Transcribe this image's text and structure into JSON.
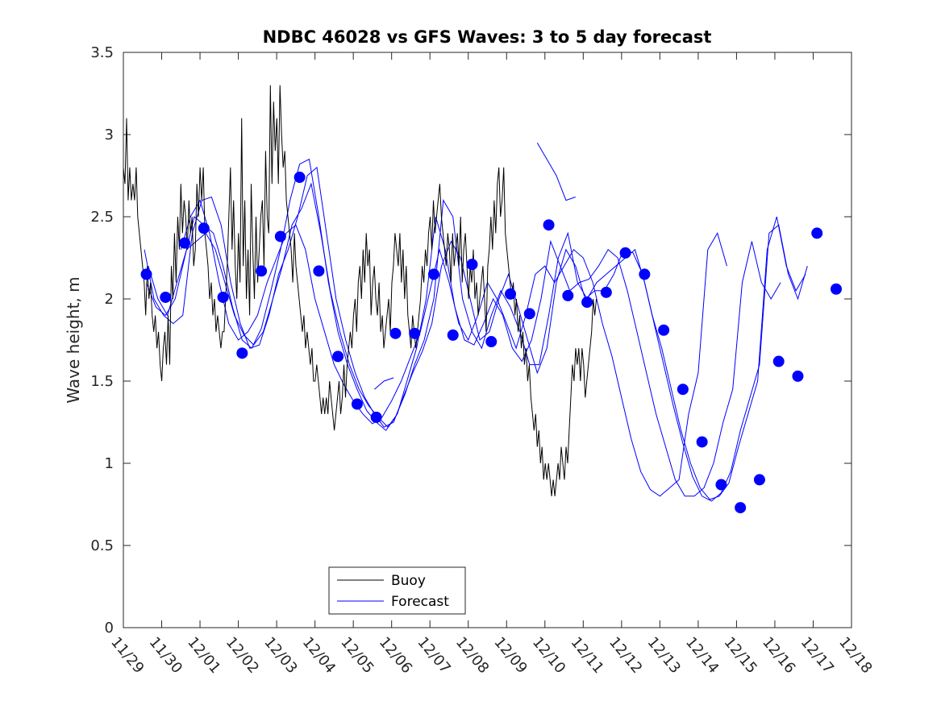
{
  "chart_data": {
    "type": "line",
    "title": "NDBC 46028 vs GFS Waves: 3 to 5 day forecast",
    "xlabel": "",
    "ylabel": "Wave height, m",
    "xlim": [
      0,
      19
    ],
    "ylim": [
      0,
      3.5
    ],
    "yticks": [
      0,
      0.5,
      1,
      1.5,
      2,
      2.5,
      3,
      3.5
    ],
    "ytick_labels": [
      "0",
      "0.5",
      "1",
      "1.5",
      "2",
      "2.5",
      "3",
      "3.5"
    ],
    "xtick_labels": [
      "11/29",
      "11/30",
      "12/01",
      "12/02",
      "12/03",
      "12/04",
      "12/05",
      "12/06",
      "12/07",
      "12/08",
      "12/09",
      "12/10",
      "12/11",
      "12/12",
      "12/13",
      "12/14",
      "12/15",
      "12/16",
      "12/17",
      "12/18"
    ],
    "legend": {
      "location": "bottom-center",
      "entries": [
        "Buoy",
        "Forecast"
      ]
    },
    "colors": {
      "buoy": "#000000",
      "forecast": "#0000ff",
      "markers": "#0000ff"
    },
    "series": [
      {
        "name": "Buoy",
        "x_step": 0.0417,
        "values": [
          2.8,
          2.7,
          3.1,
          2.6,
          2.8,
          2.6,
          2.7,
          2.6,
          2.8,
          2.5,
          2.4,
          2.3,
          2.2,
          2.1,
          1.9,
          2.2,
          2.0,
          2.1,
          1.9,
          1.8,
          1.9,
          1.7,
          1.8,
          1.6,
          1.5,
          1.7,
          1.8,
          1.6,
          1.9,
          1.6,
          2.2,
          2.0,
          2.4,
          2.1,
          2.5,
          2.3,
          2.7,
          2.4,
          2.6,
          2.5,
          2.3,
          2.6,
          2.4,
          2.5,
          2.2,
          2.3,
          2.7,
          2.5,
          2.8,
          2.6,
          2.8,
          2.4,
          2.3,
          2.2,
          2.0,
          2.1,
          1.9,
          2.0,
          1.8,
          1.9,
          1.8,
          1.7,
          1.8,
          1.8,
          2.0,
          2.2,
          2.5,
          2.8,
          2.3,
          2.6,
          2.2,
          2.0,
          2.4,
          2.1,
          3.1,
          2.2,
          2.6,
          2.0,
          2.3,
          1.9,
          2.7,
          2.3,
          2.0,
          2.5,
          2.1,
          2.3,
          2.5,
          2.6,
          2.2,
          2.9,
          2.5,
          2.4,
          3.3,
          2.7,
          3.2,
          2.9,
          3.1,
          2.7,
          3.3,
          3.0,
          2.8,
          2.9,
          2.6,
          2.5,
          2.4,
          2.3,
          2.1,
          2.4,
          2.2,
          2.1,
          2.0,
          1.9,
          1.8,
          1.9,
          1.7,
          1.8,
          1.7,
          1.6,
          1.7,
          1.5,
          1.5,
          1.6,
          1.5,
          1.4,
          1.3,
          1.4,
          1.3,
          1.4,
          1.3,
          1.5,
          1.4,
          1.3,
          1.2,
          1.3,
          1.4,
          1.5,
          1.3,
          1.4,
          1.6,
          1.4,
          1.6,
          1.7,
          1.8,
          1.7,
          1.9,
          2.0,
          1.8,
          2.1,
          2.2,
          2.0,
          2.3,
          2.1,
          2.4,
          2.2,
          2.3,
          1.9,
          2.1,
          2.2,
          2.0,
          1.9,
          2.1,
          1.8,
          1.9,
          1.7,
          1.8,
          1.9,
          2.0,
          1.8,
          2.1,
          2.2,
          2.4,
          2.3,
          2.2,
          2.4,
          2.1,
          2.3,
          2.0,
          2.2,
          1.9,
          1.8,
          1.7,
          1.9,
          1.8,
          1.7,
          1.8,
          1.9,
          2.0,
          2.2,
          2.1,
          2.3,
          2.2,
          2.4,
          2.5,
          2.3,
          2.6,
          2.4,
          2.5,
          2.6,
          2.7,
          2.5,
          2.4,
          2.3,
          2.2,
          2.4,
          2.3,
          2.1,
          2.4,
          2.2,
          2.3,
          2.4,
          2.2,
          2.5,
          2.1,
          2.3,
          2.4,
          2.2,
          2.0,
          2.2,
          2.1,
          2.3,
          2.0,
          2.1,
          1.9,
          2.0,
          2.1,
          2.2,
          2.0,
          1.8,
          2.2,
          2.3,
          2.5,
          2.3,
          2.6,
          2.4,
          2.7,
          2.8,
          2.5,
          2.6,
          2.8,
          2.4,
          2.3,
          2.2,
          2.1,
          2.0,
          2.1,
          1.9,
          2.0,
          1.8,
          1.9,
          1.7,
          1.8,
          1.6,
          1.7,
          1.5,
          1.6,
          1.4,
          1.3,
          1.2,
          1.3,
          1.1,
          1.2,
          1.0,
          1.1,
          0.9,
          1.0,
          0.9,
          1.0,
          0.9,
          0.8,
          0.9,
          0.8,
          0.9,
          1.0,
          0.9,
          1.1,
          1.0,
          0.9,
          1.1,
          1.0,
          1.2,
          1.4,
          1.6,
          1.5,
          1.7,
          1.6,
          1.7,
          1.5,
          1.7,
          1.6,
          1.4,
          1.5,
          1.6,
          1.7,
          1.8,
          2.0,
          1.9,
          2.0
        ]
      },
      {
        "name": "Forecast 1",
        "x_start": 0.55,
        "x_step": 0.25,
        "values": [
          2.3,
          2.0,
          1.9,
          1.85,
          1.9,
          2.4,
          2.6,
          2.62,
          2.45,
          2.1,
          1.85,
          1.7,
          1.72,
          1.9,
          2.15,
          2.3,
          2.5,
          2.75,
          2.8,
          2.4,
          2.0,
          1.75,
          1.55,
          1.4,
          1.3,
          1.22,
          1.25,
          1.4,
          1.55,
          1.68,
          1.85,
          2.2,
          2.35,
          2.25,
          2.0,
          1.75,
          1.8,
          2.0,
          2.15,
          1.95,
          1.75,
          1.55,
          1.7,
          2.1,
          2.3,
          2.2,
          2.0,
          2.05,
          2.05,
          2.15,
          2.3,
          2.28,
          2.15,
          1.9,
          1.7,
          1.45,
          1.2,
          1.0,
          0.85,
          0.78,
          0.8,
          0.88,
          1.1,
          1.3,
          1.5,
          2.3,
          2.5,
          2.2,
          2.05,
          2.15
        ]
      },
      {
        "name": "Forecast 2",
        "x_start": 0.6,
        "x_step": 0.25,
        "values": [
          2.1,
          1.95,
          1.9,
          2.0,
          2.25,
          2.5,
          2.45,
          2.4,
          2.2,
          1.95,
          1.75,
          1.7,
          1.82,
          2.05,
          2.3,
          2.6,
          2.82,
          2.85,
          2.5,
          2.1,
          1.8,
          1.6,
          1.45,
          1.32,
          1.25,
          1.2,
          1.28,
          1.42,
          1.6,
          1.75,
          2.0,
          2.6,
          2.5,
          2.0,
          1.8,
          1.7,
          1.9,
          2.05,
          1.95,
          1.8,
          1.6,
          1.6,
          1.9,
          2.25,
          2.4,
          2.1,
          2.0,
          2.1,
          2.15,
          2.2,
          2.25,
          2.3,
          2.1,
          1.85,
          1.6,
          1.35,
          1.12,
          0.92,
          0.8,
          0.77,
          0.82,
          0.95,
          1.2,
          1.4,
          1.6,
          2.4,
          2.45,
          2.15,
          2.0,
          2.2
        ]
      },
      {
        "name": "Forecast 3",
        "x_start": 0.65,
        "x_step": 0.25,
        "values": [
          2.2,
          2.0,
          1.9,
          2.1,
          2.3,
          2.35,
          2.4,
          2.3,
          2.1,
          1.9,
          1.78,
          1.72,
          1.8,
          2.0,
          2.2,
          2.45,
          2.55,
          2.7,
          2.4,
          2.05,
          1.8,
          1.6,
          1.45,
          1.35,
          1.28,
          1.22,
          1.3,
          1.5,
          1.7,
          2.0,
          2.5,
          2.3,
          1.95,
          1.75,
          1.72,
          1.85,
          2.0,
          1.9,
          1.7,
          1.62,
          1.75,
          2.0,
          2.35,
          2.2,
          2.05,
          2.1,
          2.12,
          2.2,
          2.3,
          2.25,
          2.05,
          1.8,
          1.55,
          1.3,
          1.1,
          0.9,
          0.8,
          0.8,
          0.85,
          1.0,
          1.25,
          1.45,
          2.1,
          2.35,
          2.1,
          2.0,
          2.1
        ]
      },
      {
        "name": "Forecast 4",
        "x_start": 1.5,
        "x_step": 0.25,
        "values": [
          2.3,
          2.5,
          2.6,
          2.4,
          2.1,
          1.85,
          1.75,
          1.8,
          1.9,
          2.1,
          2.25,
          2.4,
          2.45,
          2.3,
          2.0,
          1.8,
          1.6,
          1.48,
          1.38,
          1.3,
          1.24,
          1.28,
          1.38,
          1.5,
          1.65,
          1.8,
          2.05,
          2.3,
          2.1,
          1.85,
          1.75,
          1.9,
          2.1,
          2.0,
          1.85,
          1.7,
          1.9,
          2.15,
          2.2,
          2.1,
          2.2,
          2.3,
          2.25,
          2.1,
          1.85,
          1.65,
          1.4,
          1.15,
          0.95,
          0.84,
          0.8,
          0.85,
          0.9,
          1.3,
          1.55,
          2.3,
          2.4,
          2.2
        ]
      },
      {
        "name": "Forecast 5",
        "x_start": 6.55,
        "x_step": 0.25,
        "values": [
          1.45,
          1.5,
          1.52
        ]
      },
      {
        "name": "Forecast 6",
        "x_start": 10.8,
        "x_step": 0.25,
        "values": [
          2.95,
          2.85,
          2.75,
          2.6,
          2.62
        ]
      }
    ],
    "markers": {
      "name": "Forecast points",
      "x": [
        0.6,
        1.1,
        1.6,
        2.1,
        2.6,
        3.1,
        3.6,
        4.1,
        4.6,
        5.1,
        5.6,
        6.1,
        6.6,
        7.1,
        7.6,
        8.1,
        8.6,
        9.1,
        9.6,
        10.1,
        10.6,
        11.1,
        11.6,
        12.1,
        12.6,
        13.1,
        13.6,
        14.1,
        14.6,
        15.1,
        15.6,
        16.1,
        16.6,
        17.1,
        17.6,
        18.1,
        18.6
      ],
      "y": [
        2.15,
        2.01,
        2.34,
        2.43,
        2.01,
        1.67,
        2.17,
        2.38,
        2.74,
        2.17,
        1.65,
        1.36,
        1.28,
        1.79,
        1.79,
        2.15,
        1.78,
        2.21,
        1.74,
        2.03,
        1.91,
        2.45,
        2.02,
        1.98,
        2.04,
        2.28,
        2.15,
        1.81,
        1.45,
        1.13,
        0.87,
        0.73,
        0.9,
        1.62,
        1.53,
        2.4,
        2.06
      ]
    }
  }
}
